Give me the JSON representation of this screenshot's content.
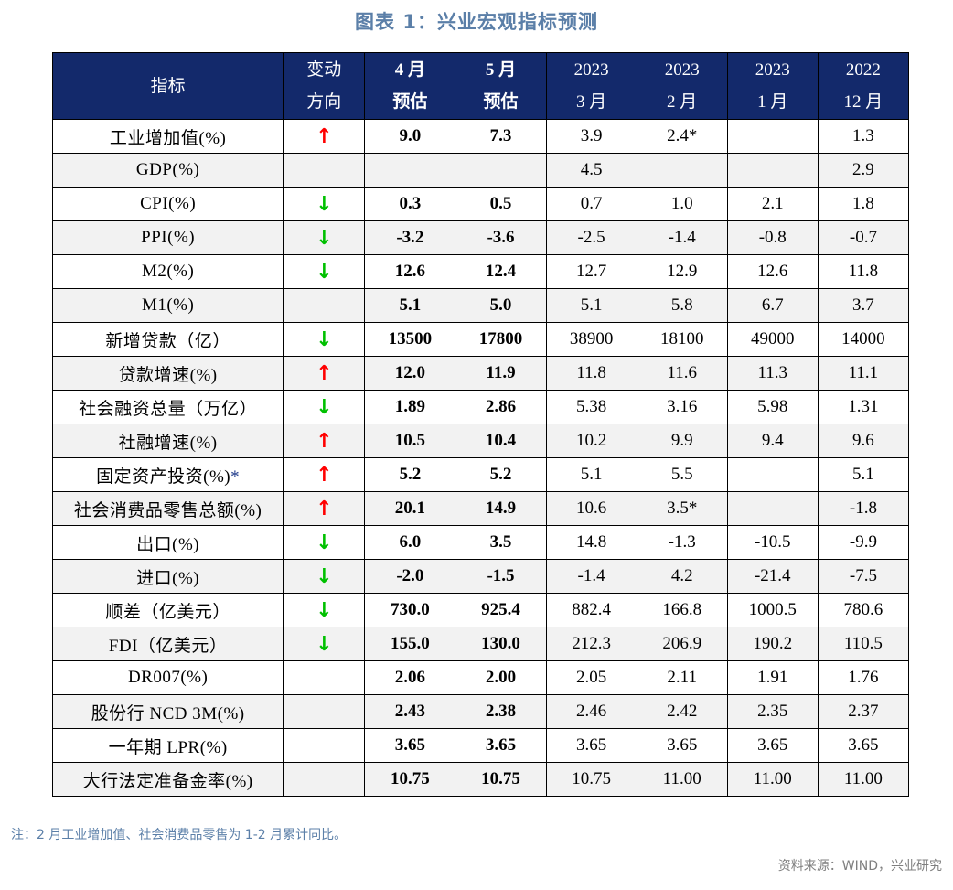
{
  "title": "图表 1：兴业宏观指标预测",
  "header": {
    "indicator": "指标",
    "direction": [
      "变动",
      "方向"
    ],
    "columns": [
      {
        "top": "4 月",
        "bottom": "预估",
        "bold": true
      },
      {
        "top": "5 月",
        "bottom": "预估",
        "bold": true
      },
      {
        "top": "2023",
        "bottom": "3 月",
        "bold": false
      },
      {
        "top": "2023",
        "bottom": "2 月",
        "bold": false
      },
      {
        "top": "2023",
        "bottom": "1 月",
        "bold": false
      },
      {
        "top": "2022",
        "bottom": "12 月",
        "bold": false
      }
    ]
  },
  "arrows": {
    "up": "↑",
    "down": "↓"
  },
  "rows": [
    {
      "name": "工业增加值(%)",
      "dir": "up",
      "values": [
        "9.0",
        "7.3",
        "3.9",
        "2.4*",
        "",
        "1.3"
      ]
    },
    {
      "name": "GDP(%)",
      "dir": "",
      "values": [
        "",
        "",
        "4.5",
        "",
        "",
        "2.9"
      ]
    },
    {
      "name": "CPI(%)",
      "dir": "down",
      "values": [
        "0.3",
        "0.5",
        "0.7",
        "1.0",
        "2.1",
        "1.8"
      ]
    },
    {
      "name": "PPI(%)",
      "dir": "down",
      "values": [
        "-3.2",
        "-3.6",
        "-2.5",
        "-1.4",
        "-0.8",
        "-0.7"
      ]
    },
    {
      "name": "M2(%)",
      "dir": "down",
      "values": [
        "12.6",
        "12.4",
        "12.7",
        "12.9",
        "12.6",
        "11.8"
      ]
    },
    {
      "name": "M1(%)",
      "dir": "",
      "values": [
        "5.1",
        "5.0",
        "5.1",
        "5.8",
        "6.7",
        "3.7"
      ]
    },
    {
      "name": "新增贷款（亿）",
      "dir": "down",
      "values": [
        "13500",
        "17800",
        "38900",
        "18100",
        "49000",
        "14000"
      ]
    },
    {
      "name": "贷款增速(%)",
      "dir": "up",
      "values": [
        "12.0",
        "11.9",
        "11.8",
        "11.6",
        "11.3",
        "11.1"
      ]
    },
    {
      "name": "社会融资总量（万亿）",
      "dir": "down",
      "values": [
        "1.89",
        "2.86",
        "5.38",
        "3.16",
        "5.98",
        "1.31"
      ]
    },
    {
      "name": "社融增速(%)",
      "dir": "up",
      "values": [
        "10.5",
        "10.4",
        "10.2",
        "9.9",
        "9.4",
        "9.6"
      ]
    },
    {
      "name": "固定资产投资(%)",
      "star": "*",
      "dir": "up",
      "values": [
        "5.2",
        "5.2",
        "5.1",
        "5.5",
        "",
        "5.1"
      ]
    },
    {
      "name": "社会消费品零售总额(%)",
      "dir": "up",
      "values": [
        "20.1",
        "14.9",
        "10.6",
        "3.5*",
        "",
        "-1.8"
      ]
    },
    {
      "name": "出口(%)",
      "dir": "down",
      "values": [
        "6.0",
        "3.5",
        "14.8",
        "-1.3",
        "-10.5",
        "-9.9"
      ]
    },
    {
      "name": "进口(%)",
      "dir": "down",
      "values": [
        "-2.0",
        "-1.5",
        "-1.4",
        "4.2",
        "-21.4",
        "-7.5"
      ]
    },
    {
      "name": "顺差（亿美元）",
      "dir": "down",
      "values": [
        "730.0",
        "925.4",
        "882.4",
        "166.8",
        "1000.5",
        "780.6"
      ]
    },
    {
      "name": "FDI（亿美元）",
      "dir": "down",
      "values": [
        "155.0",
        "130.0",
        "212.3",
        "206.9",
        "190.2",
        "110.5"
      ]
    },
    {
      "name": "DR007(%)",
      "dir": "",
      "values": [
        "2.06",
        "2.00",
        "2.05",
        "2.11",
        "1.91",
        "1.76"
      ]
    },
    {
      "name": "股份行 NCD 3M(%)",
      "dir": "",
      "values": [
        "2.43",
        "2.38",
        "2.46",
        "2.42",
        "2.35",
        "2.37"
      ]
    },
    {
      "name": "一年期 LPR(%)",
      "dir": "",
      "values": [
        "3.65",
        "3.65",
        "3.65",
        "3.65",
        "3.65",
        "3.65"
      ]
    },
    {
      "name": "大行法定准备金率(%)",
      "dir": "",
      "values": [
        "10.75",
        "10.75",
        "10.75",
        "11.00",
        "11.00",
        "11.00"
      ]
    }
  ],
  "note": "注：2 月工业增加值、社会消费品零售为 1-2 月累计同比。",
  "source": "资料来源：WIND，兴业研究"
}
